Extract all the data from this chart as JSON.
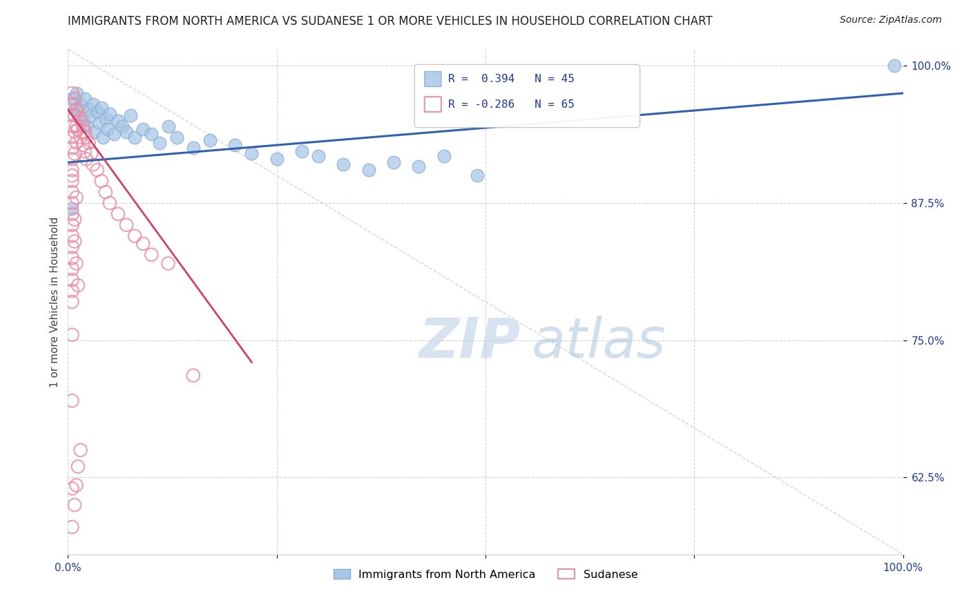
{
  "title": "IMMIGRANTS FROM NORTH AMERICA VS SUDANESE 1 OR MORE VEHICLES IN HOUSEHOLD CORRELATION CHART",
  "source": "Source: ZipAtlas.com",
  "ylabel": "1 or more Vehicles in Household",
  "watermark_zip": "ZIP",
  "watermark_atlas": "atlas",
  "bg_color": "#ffffff",
  "grid_color": "#cccccc",
  "legend1_label": "Immigrants from North America",
  "legend2_label": "Sudanese",
  "r1": 0.394,
  "n1": 45,
  "r2": -0.286,
  "n2": 65,
  "blue_color": "#a8c8e8",
  "blue_edge_color": "#88aad0",
  "pink_color": "#f4b8cc",
  "pink_edge_color": "#e890a8",
  "blue_line_color": "#3060b0",
  "pink_line_color": "#d04070",
  "diag_color": "#cccccc",
  "tick_color": "#1a3a9c",
  "title_color": "#222222",
  "ylabel_color": "#444444",
  "blue_scatter": [
    [
      0.005,
      0.97
    ],
    [
      0.008,
      0.96
    ],
    [
      0.01,
      0.975
    ],
    [
      0.012,
      0.955
    ],
    [
      0.015,
      0.965
    ],
    [
      0.018,
      0.95
    ],
    [
      0.02,
      0.97
    ],
    [
      0.022,
      0.945
    ],
    [
      0.025,
      0.96
    ],
    [
      0.028,
      0.955
    ],
    [
      0.03,
      0.965
    ],
    [
      0.032,
      0.94
    ],
    [
      0.035,
      0.958
    ],
    [
      0.038,
      0.948
    ],
    [
      0.04,
      0.962
    ],
    [
      0.042,
      0.935
    ],
    [
      0.045,
      0.952
    ],
    [
      0.048,
      0.942
    ],
    [
      0.05,
      0.956
    ],
    [
      0.055,
      0.938
    ],
    [
      0.06,
      0.95
    ],
    [
      0.065,
      0.945
    ],
    [
      0.07,
      0.94
    ],
    [
      0.075,
      0.955
    ],
    [
      0.08,
      0.935
    ],
    [
      0.09,
      0.942
    ],
    [
      0.1,
      0.938
    ],
    [
      0.11,
      0.93
    ],
    [
      0.12,
      0.945
    ],
    [
      0.13,
      0.935
    ],
    [
      0.15,
      0.925
    ],
    [
      0.17,
      0.932
    ],
    [
      0.2,
      0.928
    ],
    [
      0.22,
      0.92
    ],
    [
      0.25,
      0.915
    ],
    [
      0.28,
      0.922
    ],
    [
      0.3,
      0.918
    ],
    [
      0.33,
      0.91
    ],
    [
      0.36,
      0.905
    ],
    [
      0.39,
      0.912
    ],
    [
      0.42,
      0.908
    ],
    [
      0.45,
      0.918
    ],
    [
      0.49,
      0.9
    ],
    [
      0.005,
      0.87
    ],
    [
      0.99,
      1.0
    ]
  ],
  "pink_scatter": [
    [
      0.005,
      0.975
    ],
    [
      0.005,
      0.965
    ],
    [
      0.005,
      0.955
    ],
    [
      0.005,
      0.945
    ],
    [
      0.005,
      0.935
    ],
    [
      0.005,
      0.925
    ],
    [
      0.005,
      0.915
    ],
    [
      0.005,
      0.905
    ],
    [
      0.005,
      0.895
    ],
    [
      0.005,
      0.885
    ],
    [
      0.005,
      0.875
    ],
    [
      0.005,
      0.865
    ],
    [
      0.005,
      0.855
    ],
    [
      0.005,
      0.845
    ],
    [
      0.005,
      0.835
    ],
    [
      0.005,
      0.825
    ],
    [
      0.005,
      0.815
    ],
    [
      0.005,
      0.805
    ],
    [
      0.005,
      0.795
    ],
    [
      0.005,
      0.785
    ],
    [
      0.008,
      0.97
    ],
    [
      0.008,
      0.955
    ],
    [
      0.008,
      0.94
    ],
    [
      0.008,
      0.92
    ],
    [
      0.01,
      0.96
    ],
    [
      0.01,
      0.945
    ],
    [
      0.01,
      0.93
    ],
    [
      0.012,
      0.958
    ],
    [
      0.012,
      0.942
    ],
    [
      0.015,
      0.952
    ],
    [
      0.015,
      0.935
    ],
    [
      0.018,
      0.945
    ],
    [
      0.018,
      0.928
    ],
    [
      0.02,
      0.94
    ],
    [
      0.02,
      0.922
    ],
    [
      0.022,
      0.935
    ],
    [
      0.022,
      0.915
    ],
    [
      0.025,
      0.93
    ],
    [
      0.028,
      0.92
    ],
    [
      0.03,
      0.91
    ],
    [
      0.035,
      0.905
    ],
    [
      0.04,
      0.895
    ],
    [
      0.045,
      0.885
    ],
    [
      0.05,
      0.875
    ],
    [
      0.06,
      0.865
    ],
    [
      0.07,
      0.855
    ],
    [
      0.08,
      0.845
    ],
    [
      0.09,
      0.838
    ],
    [
      0.1,
      0.828
    ],
    [
      0.12,
      0.82
    ],
    [
      0.005,
      0.9
    ],
    [
      0.01,
      0.88
    ],
    [
      0.008,
      0.86
    ],
    [
      0.008,
      0.84
    ],
    [
      0.01,
      0.82
    ],
    [
      0.012,
      0.8
    ],
    [
      0.15,
      0.718
    ],
    [
      0.005,
      0.755
    ],
    [
      0.005,
      0.695
    ],
    [
      0.005,
      0.615
    ],
    [
      0.008,
      0.6
    ],
    [
      0.01,
      0.618
    ],
    [
      0.012,
      0.635
    ],
    [
      0.015,
      0.65
    ],
    [
      0.005,
      0.58
    ]
  ],
  "xmin": 0.0,
  "xmax": 1.0,
  "ymin": 0.555,
  "ymax": 1.015,
  "ytick_vals": [
    0.625,
    0.75,
    0.875,
    1.0
  ],
  "ytick_labels": [
    "62.5%",
    "75.0%",
    "87.5%",
    "100.0%"
  ],
  "xtick_vals": [
    0.0,
    0.25,
    0.5,
    0.75,
    1.0
  ],
  "xtick_labels": [
    "0.0%",
    "",
    "",
    "",
    "100.0%"
  ],
  "title_fontsize": 12,
  "source_fontsize": 10,
  "tick_fontsize": 11,
  "ylabel_fontsize": 11
}
